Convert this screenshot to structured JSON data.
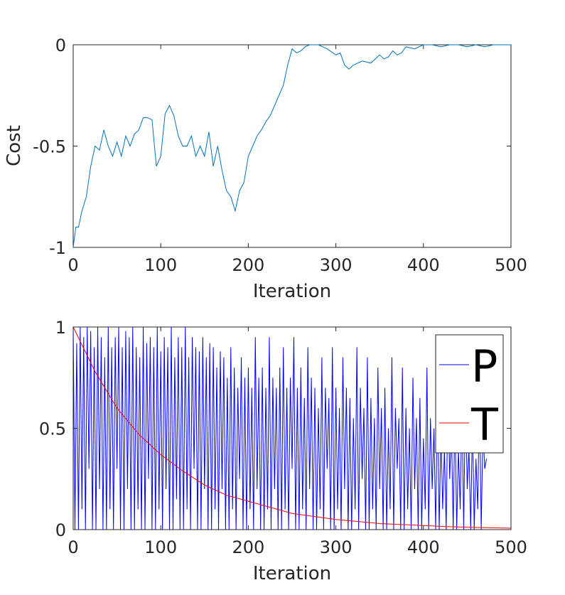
{
  "chart_data": [
    {
      "type": "line",
      "xlabel": "Iteration",
      "ylabel": "Cost",
      "xlim": [
        0,
        500
      ],
      "ylim": [
        -1,
        0
      ],
      "xticks": [
        0,
        100,
        200,
        300,
        400,
        500
      ],
      "yticks": [
        0,
        -0.5,
        -1
      ],
      "xtick_labels": [
        "0",
        "100",
        "200",
        "300",
        "400",
        "500"
      ],
      "ytick_labels": [
        "0",
        "-0.5",
        "-1"
      ],
      "grid": false,
      "series": [
        {
          "color": "#0072BD",
          "x": [
            0,
            3,
            6,
            10,
            15,
            20,
            25,
            30,
            35,
            40,
            45,
            50,
            55,
            60,
            65,
            70,
            75,
            80,
            85,
            90,
            95,
            100,
            105,
            110,
            115,
            120,
            125,
            130,
            135,
            140,
            145,
            150,
            155,
            160,
            165,
            170,
            175,
            180,
            185,
            190,
            195,
            200,
            205,
            210,
            215,
            220,
            225,
            230,
            235,
            240,
            245,
            250,
            255,
            260,
            265,
            270,
            280,
            290,
            300,
            305,
            310,
            315,
            320,
            330,
            340,
            350,
            355,
            360,
            365,
            370,
            375,
            380,
            390,
            400,
            410,
            420,
            430,
            440,
            450,
            460,
            470,
            480,
            490,
            500
          ],
          "y": [
            -1.0,
            -0.9,
            -0.9,
            -0.82,
            -0.75,
            -0.6,
            -0.5,
            -0.52,
            -0.42,
            -0.5,
            -0.55,
            -0.48,
            -0.55,
            -0.45,
            -0.5,
            -0.44,
            -0.42,
            -0.36,
            -0.36,
            -0.37,
            -0.6,
            -0.55,
            -0.34,
            -0.3,
            -0.35,
            -0.45,
            -0.5,
            -0.5,
            -0.45,
            -0.55,
            -0.5,
            -0.55,
            -0.43,
            -0.6,
            -0.5,
            -0.62,
            -0.72,
            -0.75,
            -0.82,
            -0.72,
            -0.68,
            -0.55,
            -0.5,
            -0.45,
            -0.42,
            -0.38,
            -0.35,
            -0.3,
            -0.25,
            -0.2,
            -0.1,
            -0.02,
            -0.04,
            -0.03,
            -0.01,
            0.0,
            0.0,
            -0.02,
            -0.05,
            -0.04,
            -0.1,
            -0.12,
            -0.1,
            -0.08,
            -0.09,
            -0.05,
            -0.07,
            -0.06,
            -0.03,
            -0.05,
            -0.04,
            -0.01,
            -0.02,
            0.0,
            0.0,
            -0.01,
            0.0,
            0.0,
            -0.01,
            0.0,
            -0.01,
            0.0,
            0.0,
            0.0
          ]
        }
      ]
    },
    {
      "type": "line",
      "xlabel": "Iteration",
      "ylabel": "",
      "xlim": [
        0,
        500
      ],
      "ylim": [
        0,
        1
      ],
      "xticks": [
        0,
        100,
        200,
        300,
        400,
        500
      ],
      "yticks": [
        0,
        0.5,
        1
      ],
      "xtick_labels": [
        "0",
        "100",
        "200",
        "300",
        "400",
        "500"
      ],
      "ytick_labels": [
        "0",
        "0.5",
        "1"
      ],
      "grid": false,
      "legend": {
        "location": "top-right",
        "entries": [
          "P",
          "T"
        ]
      },
      "series": [
        {
          "name": "P",
          "color": "#0000FF",
          "x_start": 0,
          "x_step": 2,
          "y": [
            1.0,
            0.0,
            0.92,
            0.0,
            1.0,
            0.1,
            0.95,
            0.0,
            1.0,
            0.3,
            0.98,
            0.0,
            0.9,
            0.0,
            1.0,
            0.2,
            0.95,
            0.0,
            0.85,
            0.0,
            1.0,
            0.1,
            0.9,
            0.0,
            0.95,
            0.3,
            1.0,
            0.0,
            0.9,
            0.0,
            0.98,
            0.2,
            0.95,
            0.0,
            1.0,
            0.0,
            0.9,
            0.1,
            0.85,
            0.0,
            1.0,
            0.0,
            0.92,
            0.25,
            0.95,
            0.0,
            0.9,
            0.0,
            1.0,
            0.1,
            0.88,
            0.0,
            0.95,
            0.2,
            0.9,
            0.0,
            1.0,
            0.0,
            0.85,
            0.15,
            0.95,
            0.0,
            0.9,
            0.0,
            1.0,
            0.1,
            0.85,
            0.0,
            0.95,
            0.3,
            0.9,
            0.0,
            0.88,
            0.0,
            0.95,
            0.2,
            0.85,
            0.0,
            0.92,
            0.0,
            0.9,
            0.1,
            0.8,
            0.0,
            0.88,
            0.2,
            0.85,
            0.0,
            0.75,
            0.0,
            0.9,
            0.1,
            0.8,
            0.0,
            0.7,
            0.25,
            0.85,
            0.0,
            0.75,
            0.0,
            0.8,
            0.1,
            0.7,
            0.0,
            0.95,
            0.2,
            0.75,
            0.0,
            0.8,
            0.0,
            0.7,
            0.1,
            0.95,
            0.0,
            0.75,
            0.2,
            0.7,
            0.0,
            0.8,
            0.0,
            0.9,
            0.1,
            0.7,
            0.0,
            0.75,
            0.3,
            0.95,
            0.0,
            0.7,
            0.0,
            0.8,
            0.1,
            0.65,
            0.0,
            0.9,
            0.2,
            0.75,
            0.0,
            0.7,
            0.0,
            0.6,
            0.1,
            0.85,
            0.0,
            0.7,
            0.3,
            0.65,
            0.0,
            0.9,
            0.0,
            0.7,
            0.1,
            0.6,
            0.0,
            0.85,
            0.2,
            0.7,
            0.0,
            0.65,
            0.0,
            0.55,
            0.1,
            0.9,
            0.0,
            0.7,
            0.25,
            0.6,
            0.0,
            0.85,
            0.0,
            0.65,
            0.1,
            0.55,
            0.0,
            0.8,
            0.2,
            0.6,
            0.0,
            0.7,
            0.0,
            0.5,
            0.1,
            0.85,
            0.0,
            0.6,
            0.3,
            0.55,
            0.0,
            0.8,
            0.0,
            0.6,
            0.1,
            0.5,
            0.0,
            0.75,
            0.2,
            0.55,
            0.0,
            0.65,
            0.0,
            0.45,
            0.1,
            0.8,
            0.0,
            0.55,
            0.2,
            0.5,
            0.0,
            0.7,
            0.0,
            0.5,
            0.1,
            0.4,
            0.0,
            0.7,
            0.25,
            0.5,
            0.0,
            0.6,
            0.0,
            0.4,
            0.1,
            0.65,
            0.0,
            0.7,
            0.2,
            0.4,
            0.0,
            0.55,
            0.0,
            0.35,
            0.1,
            0.68,
            0.0,
            0.5,
            0.3,
            0.35
          ]
        },
        {
          "name": "T",
          "color": "#FF0000",
          "x": [
            0,
            25,
            50,
            75,
            100,
            125,
            150,
            175,
            200,
            225,
            250,
            275,
            300,
            325,
            350,
            375,
            400,
            425,
            450,
            475,
            500
          ],
          "y": [
            1.0,
            0.78,
            0.6,
            0.47,
            0.37,
            0.29,
            0.22,
            0.17,
            0.14,
            0.11,
            0.08,
            0.065,
            0.05,
            0.04,
            0.03,
            0.025,
            0.02,
            0.015,
            0.012,
            0.009,
            0.007
          ]
        }
      ]
    }
  ]
}
